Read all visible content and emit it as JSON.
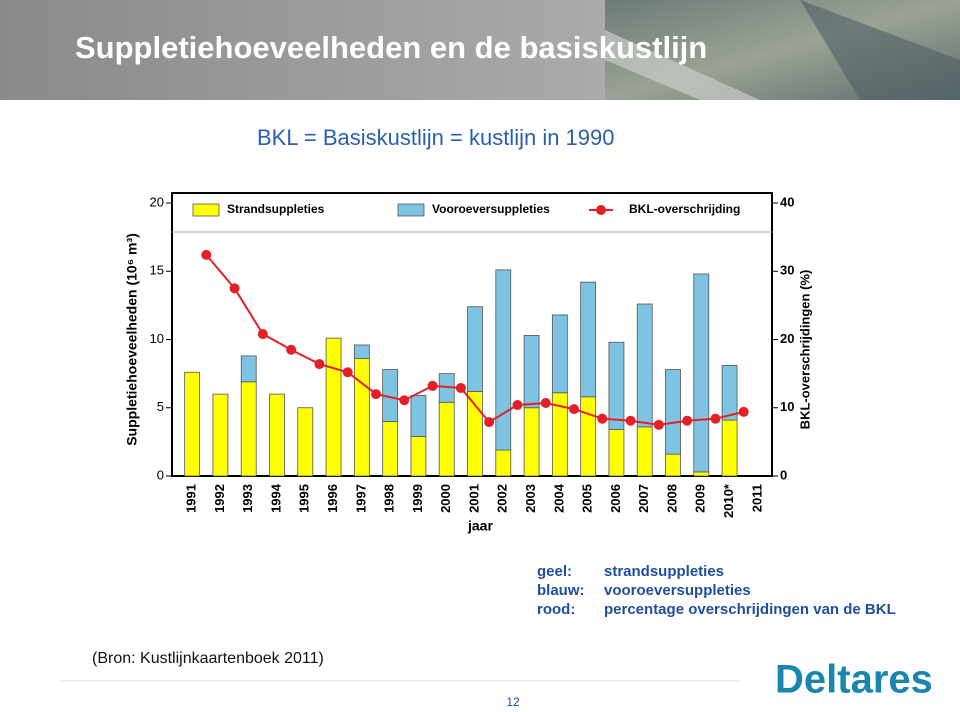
{
  "slide": {
    "title": "Suppletiehoeveelheden en de basiskustlijn",
    "subtitle": "BKL = Basiskustlijn = kustlijn in 1990",
    "notes": [
      [
        "geel:",
        "strandsuppleties"
      ],
      [
        "blauw:",
        "vooroeversuppleties"
      ],
      [
        "rood:",
        "percentage overschrijdingen van de BKL"
      ]
    ],
    "source": "(Bron: Kustlijnkaartenboek 2011)",
    "logo": "Deltares",
    "page": "12"
  },
  "chart_data": {
    "type": "bar",
    "stacked": true,
    "categories": [
      "1991",
      "1992",
      "1993",
      "1994",
      "1995",
      "1996",
      "1997",
      "1998",
      "1999",
      "2000",
      "2001",
      "2002",
      "2003",
      "2004",
      "2005",
      "2006",
      "2007",
      "2008",
      "2009",
      "2010*",
      "2011"
    ],
    "series": [
      {
        "name": "Strandsuppleties",
        "color": "#ffff00",
        "values": [
          7.6,
          6.0,
          6.9,
          6.0,
          5.0,
          10.1,
          8.6,
          4.0,
          2.9,
          5.4,
          6.2,
          1.9,
          5.0,
          6.1,
          5.8,
          3.4,
          3.6,
          1.6,
          0.3,
          4.1,
          null
        ]
      },
      {
        "name": "Vooroeversuppleties",
        "color": "#7ec4e2",
        "values": [
          0,
          0,
          1.9,
          0,
          0,
          0,
          1.0,
          3.8,
          3.0,
          2.1,
          6.2,
          13.2,
          5.3,
          5.7,
          8.4,
          6.4,
          9.0,
          6.2,
          14.5,
          4.0,
          null
        ]
      },
      {
        "name": "BKL-overschrijding",
        "color": "#e32028",
        "type": "line",
        "axis": "y2",
        "values": [
          32.4,
          27.5,
          20.8,
          18.5,
          16.4,
          15.2,
          12.0,
          11.1,
          13.2,
          12.9,
          7.9,
          10.4,
          10.7,
          9.8,
          8.4,
          8.1,
          7.5,
          8.1,
          8.4,
          9.4,
          null
        ]
      }
    ],
    "xlabel": "jaar",
    "ylabel": "Suppletiehoeveelheden (10⁶ m³)",
    "y2label": "BKL-overschrijdingen (%)",
    "ylim": [
      0,
      20
    ],
    "yticks": [
      0,
      5,
      10,
      15,
      20
    ],
    "y2lim": [
      0,
      40
    ],
    "y2ticks": [
      0,
      10,
      20,
      30,
      40
    ]
  }
}
